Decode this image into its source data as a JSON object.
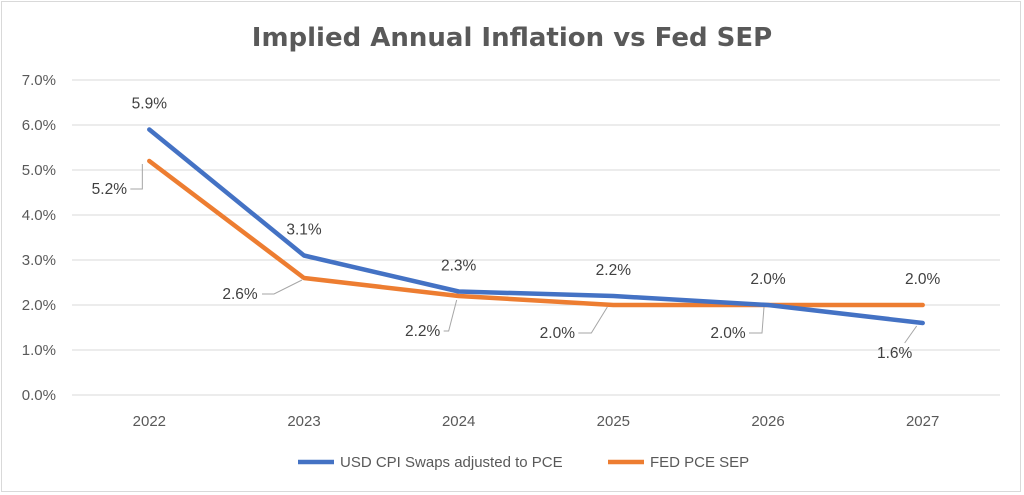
{
  "chart_data": {
    "type": "line",
    "title": "Implied Annual Inflation vs Fed SEP",
    "xlabel": "",
    "ylabel": "",
    "categories": [
      "2022",
      "2023",
      "2024",
      "2025",
      "2026",
      "2027"
    ],
    "y_ticks": [
      "0.0%",
      "1.0%",
      "2.0%",
      "3.0%",
      "4.0%",
      "5.0%",
      "6.0%",
      "7.0%"
    ],
    "ylim": [
      0,
      7
    ],
    "grid": true,
    "legend_position": "bottom",
    "series": [
      {
        "name": "USD CPI Swaps adjusted to PCE",
        "color": "#4472c4",
        "values": [
          5.9,
          3.1,
          2.3,
          2.2,
          2.0,
          1.6
        ],
        "labels": [
          "5.9%",
          "3.1%",
          "2.3%",
          "2.2%",
          "2.0%",
          "1.6%"
        ]
      },
      {
        "name": "FED PCE SEP",
        "color": "#ed7d31",
        "values": [
          5.2,
          2.6,
          2.2,
          2.0,
          2.0,
          2.0
        ],
        "labels": [
          "5.2%",
          "2.6%",
          "2.2%",
          "2.0%",
          "2.0%",
          "2.0%"
        ]
      }
    ]
  }
}
